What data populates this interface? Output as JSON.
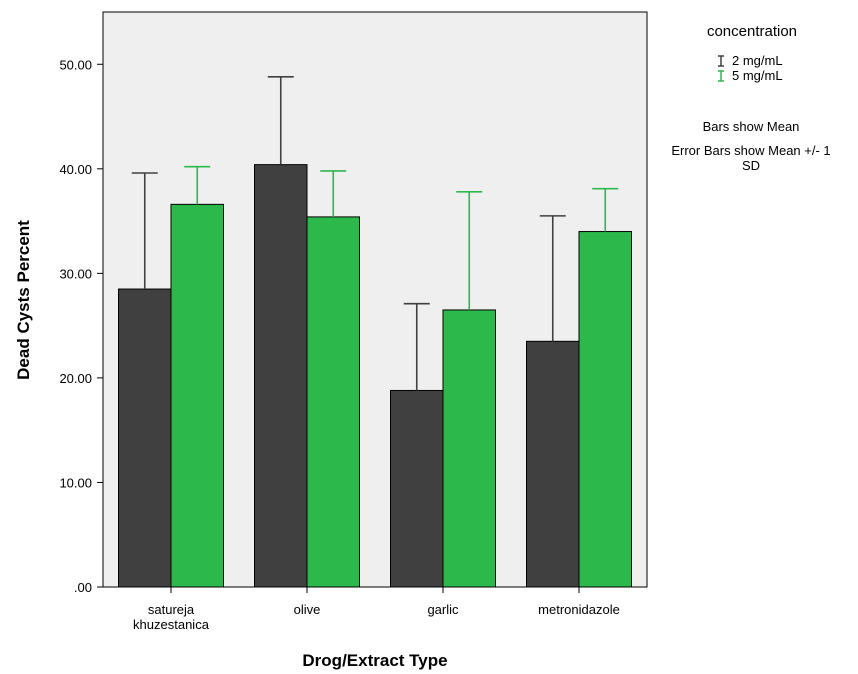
{
  "chart_data": {
    "type": "bar",
    "xlabel": "Drog/Extract Type",
    "ylabel": "Dead Cysts Percent",
    "ylim": [
      0,
      55
    ],
    "yticks": [
      0,
      10,
      20,
      30,
      40,
      50
    ],
    "ytick_labels": [
      ".00",
      "10.00",
      "20.00",
      "30.00",
      "40.00",
      "50.00"
    ],
    "categories": [
      [
        "satureja",
        "khuzestanica"
      ],
      [
        "olive"
      ],
      [
        "garlic"
      ],
      [
        "metronidazole"
      ]
    ],
    "series": [
      {
        "name": "2 mg/mL",
        "color": "#404040",
        "error_color": "#404040",
        "values": [
          28.5,
          40.4,
          18.8,
          23.5
        ],
        "error_upper": [
          39.6,
          48.8,
          27.1,
          35.5
        ]
      },
      {
        "name": "5 mg/mL",
        "color": "#2db84b",
        "error_color": "#2db84b",
        "values": [
          36.6,
          35.4,
          26.5,
          34.0
        ],
        "error_upper": [
          40.2,
          39.8,
          37.8,
          38.1
        ]
      }
    ],
    "legend": {
      "title": "concentration",
      "placement": "right",
      "notes": [
        "Bars show Mean",
        "Error Bars show Mean +/- 1",
        "SD"
      ]
    },
    "plot_background": "#efefef",
    "grid": false
  }
}
